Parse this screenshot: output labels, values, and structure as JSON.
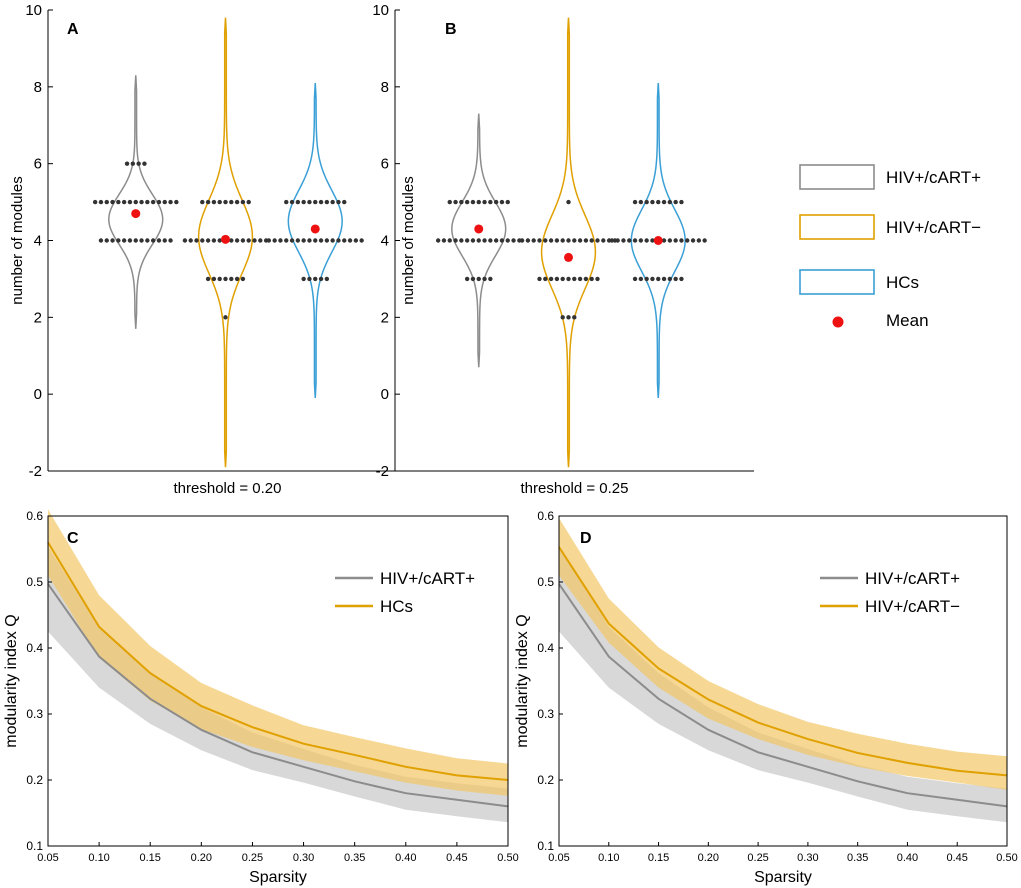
{
  "colors": {
    "hiv_cart_pos": "#8c8c8c",
    "hiv_cart_neg": "#e0a000",
    "hcs": "#3a9fd6",
    "mean": "#ee1111",
    "dots": "#333333",
    "band_gray": "#c8c8c8",
    "band_orange": "#f2c867"
  },
  "legend": {
    "items": [
      {
        "label": "HIV+/cART+",
        "swatch": "box",
        "color_key": "hiv_cart_pos"
      },
      {
        "label": "HIV+/cART−",
        "swatch": "box",
        "color_key": "hiv_cart_neg"
      },
      {
        "label": "HCs",
        "swatch": "box",
        "color_key": "hcs"
      },
      {
        "label": "Mean",
        "swatch": "dot",
        "color_key": "mean"
      }
    ]
  },
  "chart_data": [
    {
      "id": "A",
      "panel_label": "A",
      "type": "violin",
      "xlabel": "threshold = 0.20",
      "ylabel": "number of  modules",
      "ylim": [
        -2,
        10
      ],
      "yticks": [
        "-2",
        "0",
        "2",
        "4",
        "6",
        "8",
        "10"
      ],
      "groups": [
        {
          "name": "HIV+/cART+",
          "color_key": "hiv_cart_pos",
          "x": 1,
          "range": [
            1.7,
            8.3
          ],
          "peaks": [
            {
              "c": 4.55,
              "s": 0.65,
              "a": 1
            }
          ],
          "halfwidth": 0.3,
          "dots": [
            {
              "v": 6,
              "n": 4
            },
            {
              "v": 5,
              "n": 15
            },
            {
              "v": 4,
              "n": 13
            }
          ],
          "mean": 4.7
        },
        {
          "name": "HIV+/cART−",
          "color_key": "hiv_cart_neg",
          "x": 2,
          "range": [
            -1.9,
            9.8
          ],
          "peaks": [
            {
              "c": 4.1,
              "s": 0.95,
              "a": 1
            }
          ],
          "halfwidth": 0.3,
          "dots": [
            {
              "v": 5,
              "n": 9
            },
            {
              "v": 4,
              "n": 15
            },
            {
              "v": 3,
              "n": 7
            },
            {
              "v": 2,
              "n": 1
            }
          ],
          "mean": 4.03
        },
        {
          "name": "HCs",
          "color_key": "hcs",
          "x": 3,
          "range": [
            -0.1,
            8.1
          ],
          "peaks": [
            {
              "c": 4.5,
              "s": 0.8,
              "a": 1
            }
          ],
          "halfwidth": 0.3,
          "dots": [
            {
              "v": 5,
              "n": 11
            },
            {
              "v": 4,
              "n": 17
            },
            {
              "v": 3,
              "n": 5
            }
          ],
          "mean": 4.3
        }
      ]
    },
    {
      "id": "B",
      "panel_label": "B",
      "type": "violin",
      "xlabel": "threshold = 0.25",
      "ylabel": "number of  modules",
      "ylim": [
        -2,
        10
      ],
      "yticks": [
        "-2",
        "0",
        "2",
        "4",
        "6",
        "8",
        "10"
      ],
      "groups": [
        {
          "name": "HIV+/cART+",
          "color_key": "hiv_cart_pos",
          "x": 1,
          "range": [
            0.7,
            7.3
          ],
          "peaks": [
            {
              "c": 4.3,
              "s": 0.7,
              "a": 1
            }
          ],
          "halfwidth": 0.3,
          "dots": [
            {
              "v": 5,
              "n": 11
            },
            {
              "v": 4,
              "n": 15
            },
            {
              "v": 3,
              "n": 5
            }
          ],
          "mean": 4.3
        },
        {
          "name": "HIV+/cART−",
          "color_key": "hiv_cart_neg",
          "x": 2,
          "range": [
            -1.9,
            9.8
          ],
          "peaks": [
            {
              "c": 3.7,
              "s": 0.95,
              "a": 1
            }
          ],
          "halfwidth": 0.3,
          "dots": [
            {
              "v": 5,
              "n": 1
            },
            {
              "v": 4,
              "n": 17
            },
            {
              "v": 3,
              "n": 11
            },
            {
              "v": 2,
              "n": 3
            }
          ],
          "mean": 3.56
        },
        {
          "name": "HCs",
          "color_key": "hcs",
          "x": 3,
          "range": [
            -0.1,
            8.1
          ],
          "peaks": [
            {
              "c": 4.0,
              "s": 0.8,
              "a": 1
            }
          ],
          "halfwidth": 0.3,
          "dots": [
            {
              "v": 5,
              "n": 9
            },
            {
              "v": 4,
              "n": 17
            },
            {
              "v": 3,
              "n": 9
            }
          ],
          "mean": 4.0
        }
      ]
    },
    {
      "id": "C",
      "panel_label": "C",
      "type": "line",
      "xlabel": "Sparsity",
      "ylabel": "modularity index Q",
      "xlim": [
        0.05,
        0.5
      ],
      "ylim": [
        0.1,
        0.6
      ],
      "xticks": [
        "0.05",
        "0.10",
        "0.15",
        "0.20",
        "0.25",
        "0.30",
        "0.35",
        "0.40",
        "0.45",
        "0.50"
      ],
      "yticks": [
        "0.1",
        "0.2",
        "0.3",
        "0.4",
        "0.5",
        "0.6"
      ],
      "x": [
        0.05,
        0.1,
        0.15,
        0.2,
        0.25,
        0.3,
        0.35,
        0.4,
        0.45,
        0.5
      ],
      "series": [
        {
          "name": "HIV+/cART+",
          "color_key": "hiv_cart_pos",
          "band_key": "band_gray",
          "values": [
            0.497,
            0.387,
            0.323,
            0.276,
            0.242,
            0.22,
            0.198,
            0.18,
            0.17,
            0.16
          ],
          "lower": [
            0.425,
            0.34,
            0.285,
            0.245,
            0.215,
            0.196,
            0.175,
            0.155,
            0.145,
            0.136
          ],
          "upper": [
            0.553,
            0.432,
            0.362,
            0.31,
            0.272,
            0.247,
            0.223,
            0.205,
            0.195,
            0.187
          ]
        },
        {
          "name": "HCs",
          "color_key": "hiv_cart_neg",
          "band_key": "band_orange",
          "values": [
            0.56,
            0.432,
            0.362,
            0.312,
            0.28,
            0.255,
            0.238,
            0.22,
            0.207,
            0.2
          ],
          "lower": [
            0.51,
            0.385,
            0.32,
            0.277,
            0.25,
            0.23,
            0.213,
            0.196,
            0.184,
            0.176
          ],
          "upper": [
            0.61,
            0.48,
            0.403,
            0.347,
            0.313,
            0.283,
            0.265,
            0.248,
            0.233,
            0.225
          ]
        }
      ]
    },
    {
      "id": "D",
      "panel_label": "D",
      "type": "line",
      "xlabel": "Sparsity",
      "ylabel": "modularity index Q",
      "xlim": [
        0.05,
        0.5
      ],
      "ylim": [
        0.1,
        0.6
      ],
      "xticks": [
        "0.05",
        "0.10",
        "0.15",
        "0.20",
        "0.25",
        "0.30",
        "0.35",
        "0.40",
        "0.45",
        "0.50"
      ],
      "yticks": [
        "0.1",
        "0.2",
        "0.3",
        "0.4",
        "0.5",
        "0.6"
      ],
      "x": [
        0.05,
        0.1,
        0.15,
        0.2,
        0.25,
        0.3,
        0.35,
        0.4,
        0.45,
        0.5
      ],
      "series": [
        {
          "name": "HIV+/cART+",
          "color_key": "hiv_cart_pos",
          "band_key": "band_gray",
          "values": [
            0.497,
            0.387,
            0.323,
            0.276,
            0.242,
            0.22,
            0.198,
            0.18,
            0.17,
            0.16
          ],
          "lower": [
            0.425,
            0.34,
            0.285,
            0.245,
            0.215,
            0.196,
            0.175,
            0.155,
            0.145,
            0.136
          ],
          "upper": [
            0.553,
            0.432,
            0.362,
            0.31,
            0.272,
            0.247,
            0.223,
            0.205,
            0.195,
            0.187
          ]
        },
        {
          "name": "HIV+/cART−",
          "color_key": "hiv_cart_neg",
          "band_key": "band_orange",
          "values": [
            0.553,
            0.437,
            0.369,
            0.322,
            0.287,
            0.262,
            0.241,
            0.226,
            0.214,
            0.207
          ],
          "lower": [
            0.51,
            0.408,
            0.34,
            0.293,
            0.262,
            0.238,
            0.22,
            0.206,
            0.196,
            0.185
          ],
          "upper": [
            0.597,
            0.475,
            0.401,
            0.35,
            0.315,
            0.288,
            0.27,
            0.255,
            0.243,
            0.236
          ]
        }
      ]
    }
  ]
}
